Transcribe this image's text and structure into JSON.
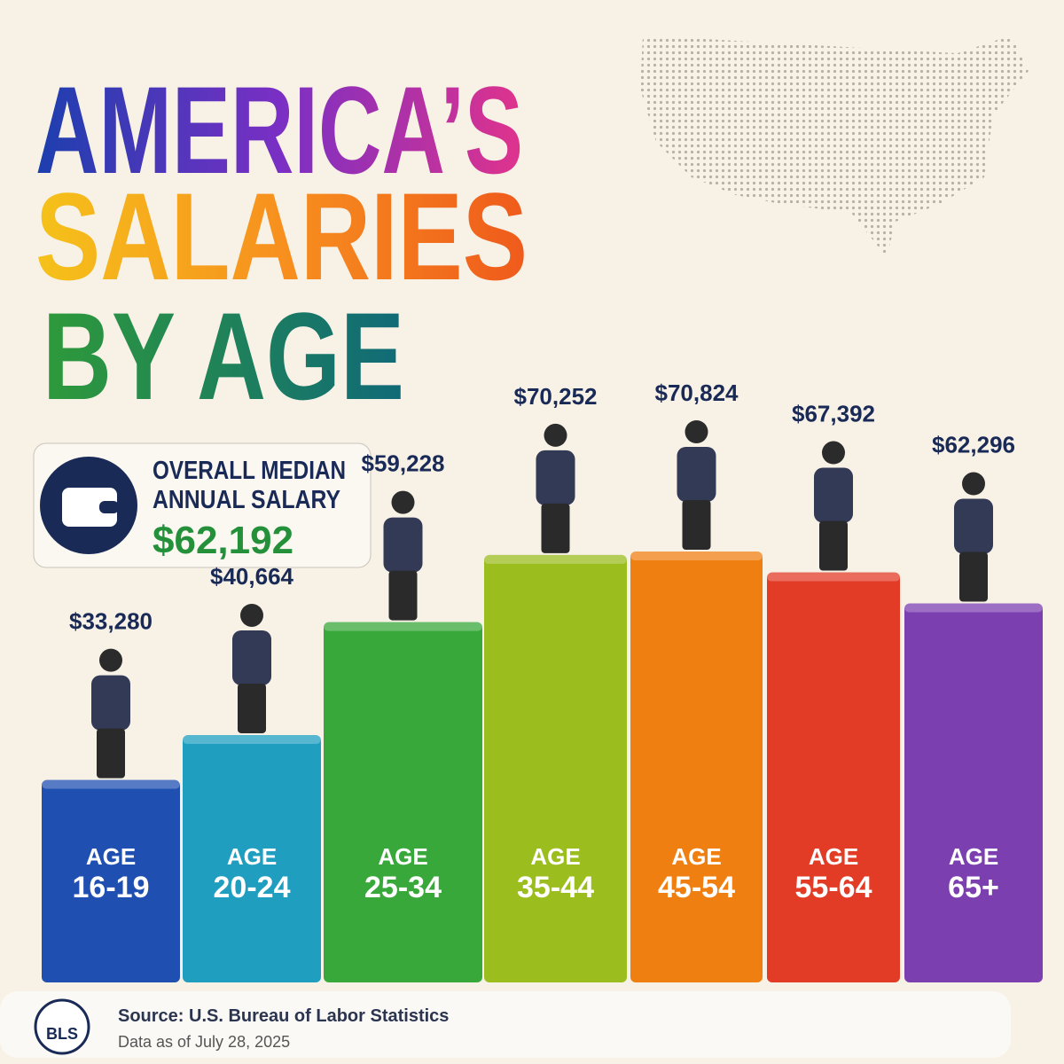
{
  "chart_data": {
    "type": "bar",
    "title_lines": [
      "AMERICA’S",
      "SALARIES",
      "BY AGE"
    ],
    "overall_label_lines": [
      "OVERALL MEDIAN",
      "ANNUAL SALARY"
    ],
    "overall_value_label": "$62,192",
    "overall_value": 62192,
    "age_label": "AGE",
    "categories": [
      "16-19",
      "20-24",
      "25-34",
      "35-44",
      "45-54",
      "55-64",
      "65+"
    ],
    "values": [
      33280,
      40664,
      59228,
      70252,
      70824,
      67392,
      62296
    ],
    "value_labels": [
      "$33,280",
      "$40,664",
      "$59,228",
      "$70,252",
      "$70,824",
      "$67,392",
      "$62,296"
    ],
    "colors": [
      "#1f4fb0",
      "#1f9ec0",
      "#38a83a",
      "#9bbd1e",
      "#f07f12",
      "#e23b26",
      "#7c3fb0"
    ],
    "source": "Source: U.S. Bureau of Labor Statistics",
    "date_note": "Data as of July 28, 2025",
    "logo": "BLS"
  }
}
